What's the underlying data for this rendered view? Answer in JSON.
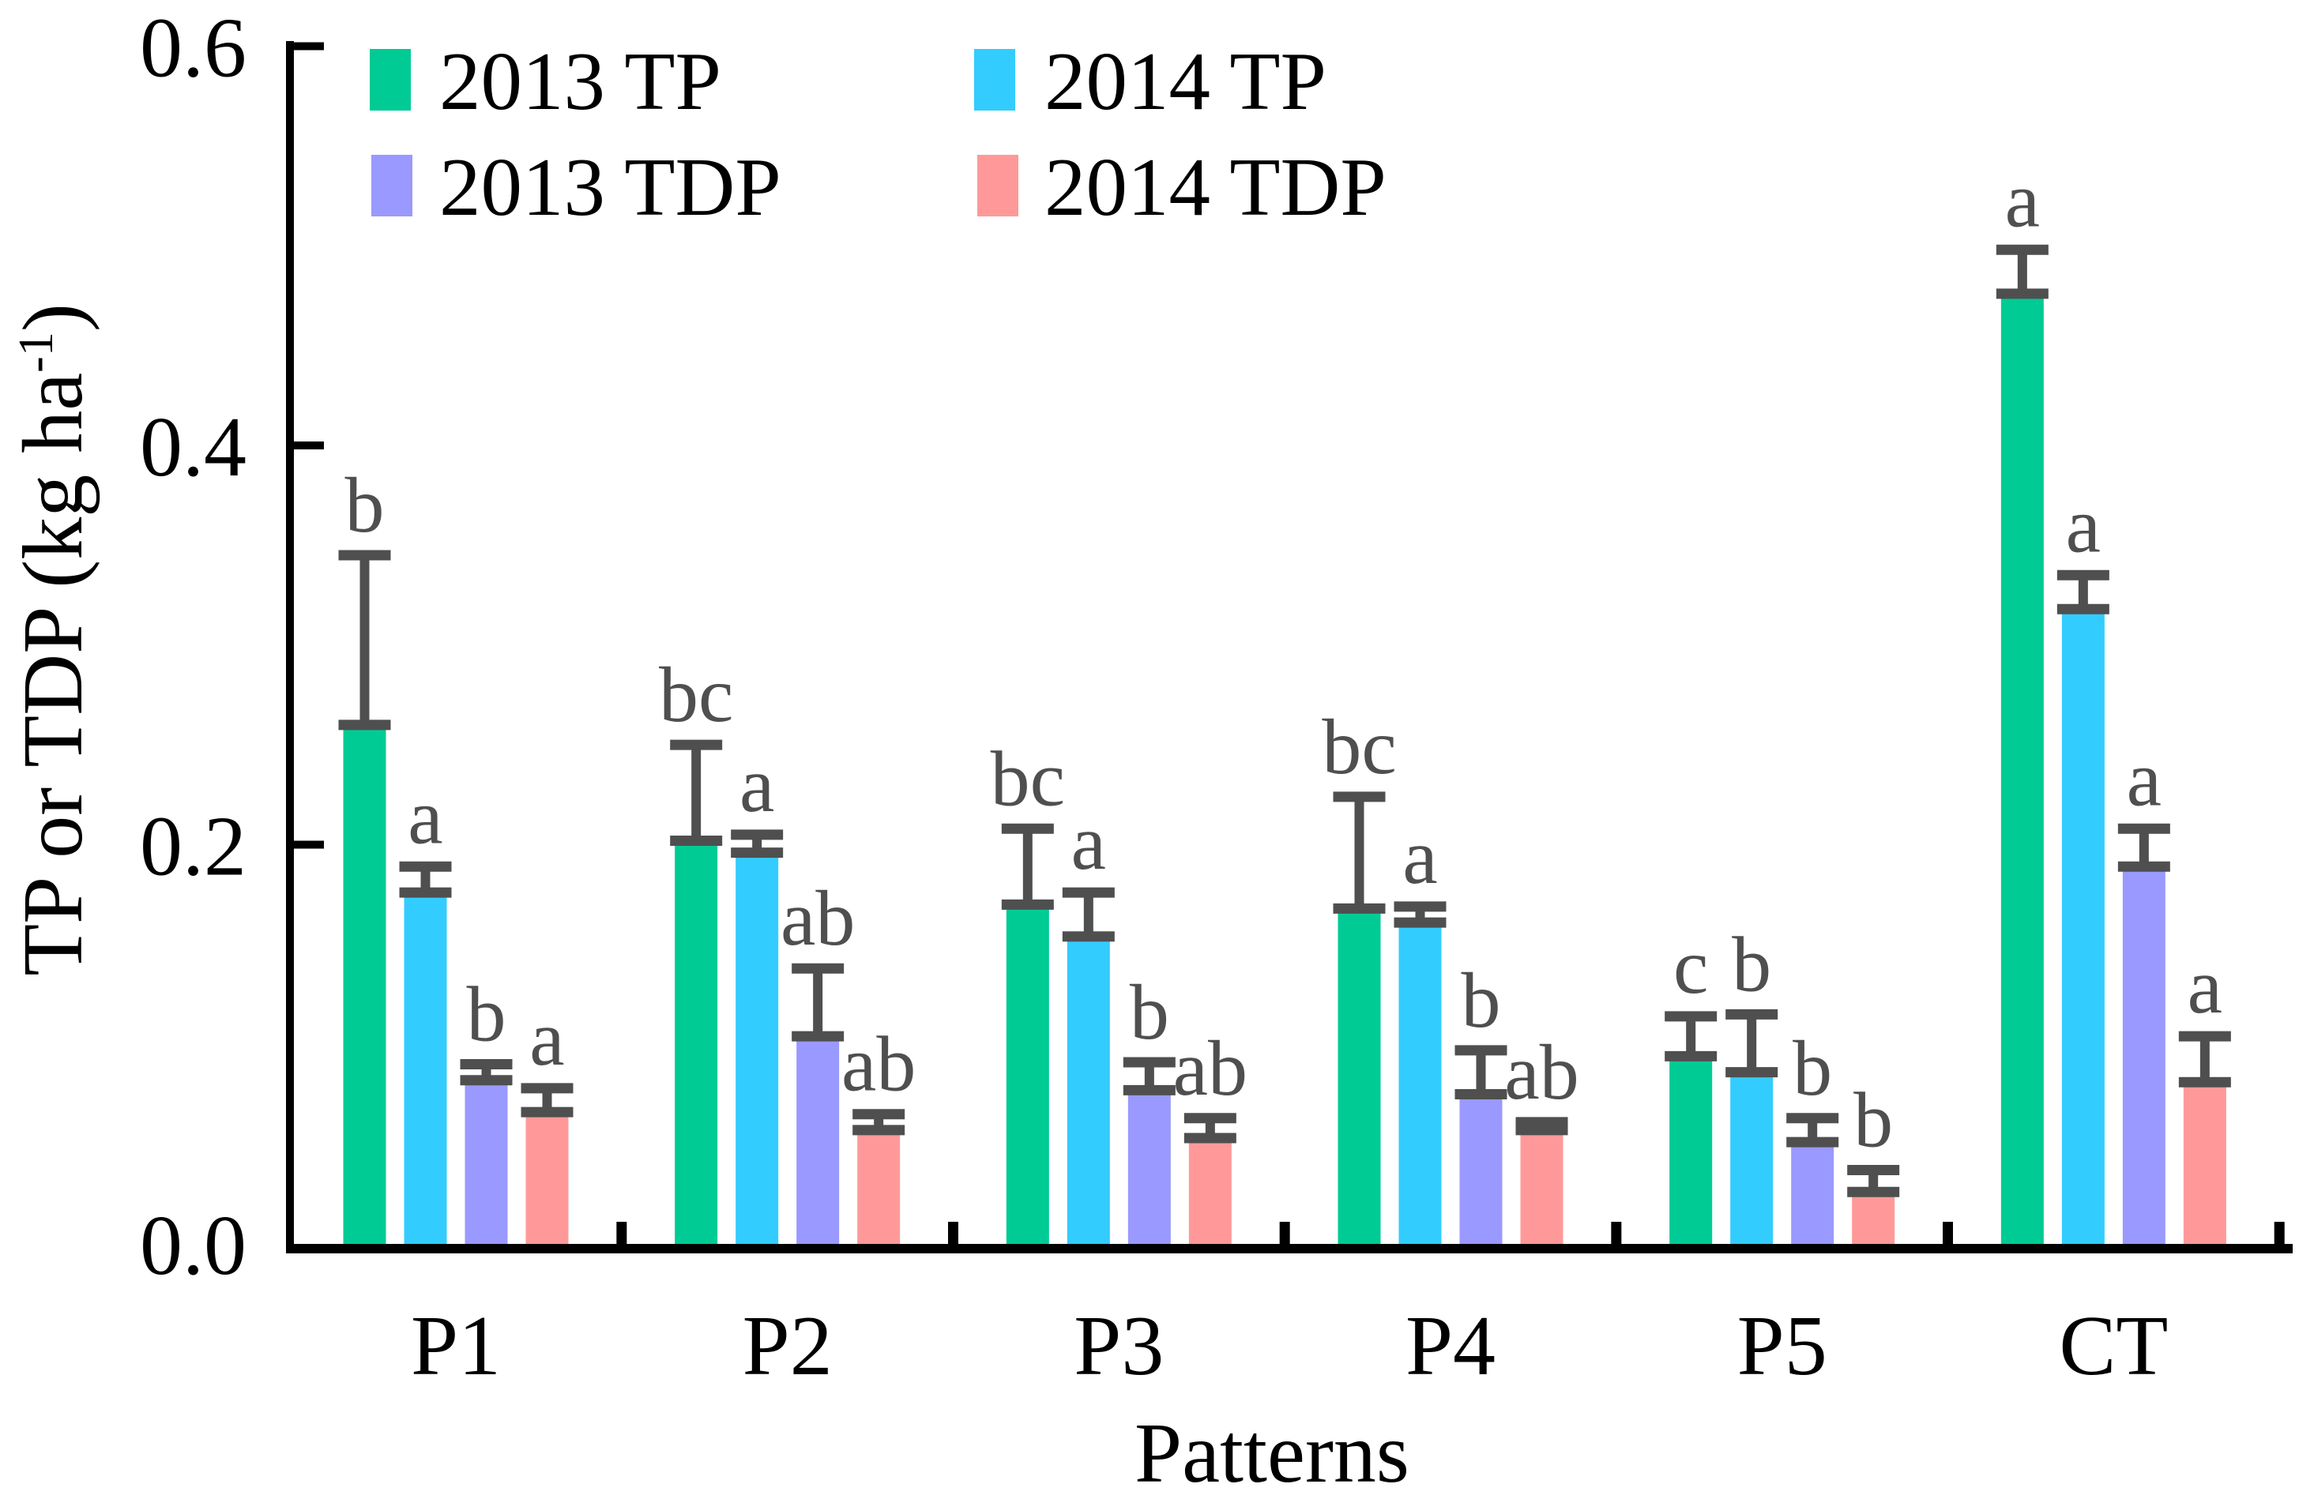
{
  "figure": {
    "background": "#FFFFFF"
  },
  "chart_data": {
    "type": "bar",
    "title": "",
    "xlabel": "Patterns",
    "ylabel": {
      "prefix": "TP or TDP (kg ha",
      "superscript": "-1",
      "suffix": ")"
    },
    "ylabel_plain": "TP or TDP (kg ha^-1)",
    "categories": [
      "P1",
      "P2",
      "P3",
      "P4",
      "P5",
      "CT"
    ],
    "series": [
      {
        "name": "2013 TP",
        "color": "#00CB94",
        "values": [
          0.26,
          0.202,
          0.17,
          0.168,
          0.094,
          0.476
        ],
        "errors": [
          0.085,
          0.048,
          0.038,
          0.056,
          0.02,
          0.022
        ],
        "letters": [
          "b",
          "bc",
          "bc",
          "bc",
          "c",
          "a"
        ]
      },
      {
        "name": "2014 TP",
        "color": "#33CCFF",
        "values": [
          0.176,
          0.196,
          0.154,
          0.161,
          0.086,
          0.318
        ],
        "errors": [
          0.013,
          0.009,
          0.022,
          0.008,
          0.029,
          0.017
        ],
        "letters": [
          "a",
          "a",
          "a",
          "a",
          "b",
          "a"
        ]
      },
      {
        "name": "2013 TDP",
        "color": "#9999FF",
        "values": [
          0.082,
          0.104,
          0.077,
          0.075,
          0.051,
          0.189
        ],
        "errors": [
          0.008,
          0.034,
          0.014,
          0.022,
          0.012,
          0.019
        ],
        "letters": [
          "b",
          "ab",
          "b",
          "b",
          "b",
          "a"
        ]
      },
      {
        "name": "2014 TDP",
        "color": "#FF9999",
        "values": [
          0.066,
          0.057,
          0.053,
          0.057,
          0.026,
          0.081
        ],
        "errors": [
          0.012,
          0.008,
          0.01,
          0.004,
          0.011,
          0.023
        ],
        "letters": [
          "a",
          "ab",
          "ab",
          "ab",
          "b",
          "a"
        ]
      }
    ],
    "ylim": [
      0,
      0.6
    ],
    "yticks": [
      0.0,
      0.2,
      0.4,
      0.6
    ],
    "ytick_labels": [
      "0.0",
      "0.2",
      "0.4",
      "0.6"
    ],
    "grid": false,
    "legend_position": "top-left-inside",
    "axis_color": "#000000",
    "error_color": "#4F4F4F",
    "sig_letter_color": "#4F4F4F"
  }
}
